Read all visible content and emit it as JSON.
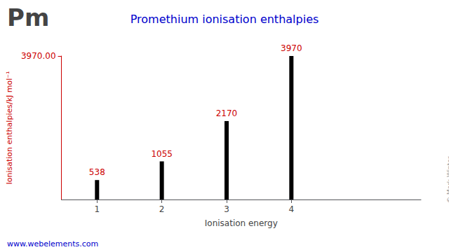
{
  "chart_data": {
    "type": "bar",
    "title": "Promethium ionisation enthalpies",
    "x": [
      1,
      2,
      3,
      4
    ],
    "values": [
      538,
      1055,
      2170,
      3970
    ],
    "color": "#000000",
    "xlim": [
      0.45,
      6.0
    ],
    "xticks": [
      1,
      2,
      3,
      4
    ],
    "ylim": [
      0,
      3970
    ],
    "yticks": [
      {
        "value": 3970,
        "label": "3970.00"
      }
    ],
    "xlabel": "Ionisation energy",
    "ylabel": "Ionisation enthalpies/kJ mol⁻¹",
    "data_labels": true,
    "grid": false,
    "annotations": [
      "Pm",
      "© Mark Winter",
      "www.webelements.com"
    ]
  }
}
